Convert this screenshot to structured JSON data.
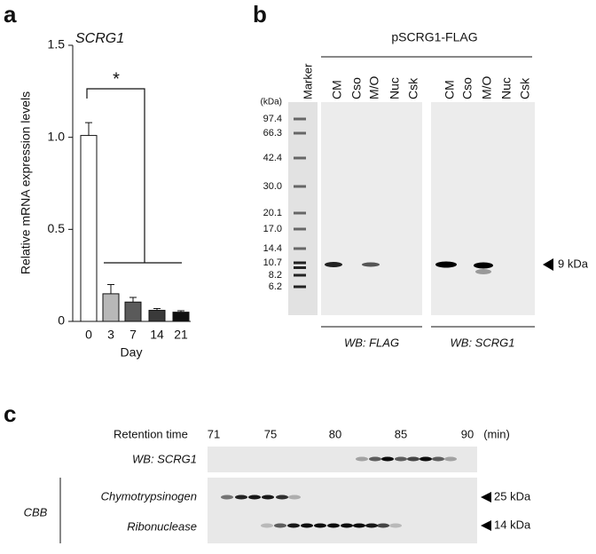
{
  "chart_data": {
    "type": "bar",
    "panel_label": "a",
    "title": "SCRG1",
    "ylabel": "Relative mRNA expression levels",
    "xlabel": "Day",
    "categories": [
      "0",
      "3",
      "7",
      "14",
      "21"
    ],
    "values": [
      1.01,
      0.15,
      0.105,
      0.06,
      0.05
    ],
    "errors": [
      0.07,
      0.05,
      0.025,
      0.01,
      0.008
    ],
    "colors": [
      "#ffffff",
      "#b8b8b8",
      "#5a5a5a",
      "#3a3a3a",
      "#111111"
    ],
    "ylim": [
      0,
      1.5
    ],
    "yticks": [
      0,
      0.5,
      {
        "value": 1,
        "label": "1.0"
      },
      1.5
    ],
    "annotation": "*"
  },
  "panel_b": {
    "label": "b",
    "construct": "pSCRG1-FLAG",
    "marker": "Marker",
    "kda_unit": "(kDa)",
    "marker_sizes": [
      "97.4",
      "66.3",
      "42.4",
      "30.0",
      "20.1",
      "17.0",
      "14.4",
      "10.7",
      "8.2",
      "6.2"
    ],
    "blots": [
      {
        "name": "WB: FLAG",
        "lanes": [
          "CM",
          "Cso",
          "M/O",
          "Nuc",
          "Csk"
        ]
      },
      {
        "name": "WB: SCRG1",
        "lanes": [
          "CM",
          "Cso",
          "M/O",
          "Nuc",
          "Csk"
        ]
      }
    ],
    "band_size": "9 kDa"
  },
  "panel_c": {
    "label": "c",
    "axis_title": "Retention time",
    "times": [
      "71",
      "75",
      "80",
      "85",
      "90"
    ],
    "unit": "(min)",
    "wb_row": "WB: SCRG1",
    "stain": "CBB",
    "standards": [
      {
        "name": "Chymotrypsinogen",
        "size": "25 kDa"
      },
      {
        "name": "Ribonuclease",
        "size": "14 kDa"
      }
    ]
  }
}
